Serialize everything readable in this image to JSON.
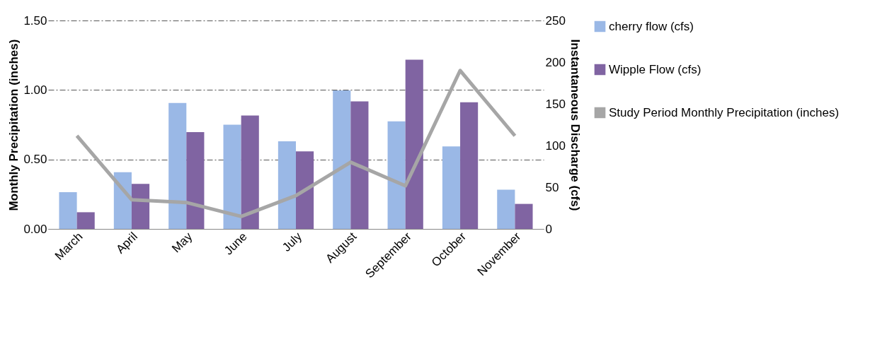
{
  "chart_data": {
    "type": "bar",
    "categories": [
      "March",
      "April",
      "May",
      "June",
      "July",
      "August",
      "September",
      "October",
      "November"
    ],
    "series": [
      {
        "name": "cherry flow (cfs)",
        "type": "bar",
        "axis": "y2",
        "color": "#9ab8e6",
        "values": [
          44,
          68,
          151,
          125,
          105,
          166,
          129,
          99,
          47
        ]
      },
      {
        "name": "Wipple Flow (cfs)",
        "type": "bar",
        "axis": "y2",
        "color": "#8064a2",
        "values": [
          20,
          54,
          116,
          136,
          93,
          153,
          203,
          152,
          30
        ]
      },
      {
        "name": "Study Period Monthly Precipitation (inches)",
        "type": "line",
        "axis": "y",
        "color": "#a6a6a6",
        "values": [
          0.67,
          0.21,
          0.19,
          0.09,
          0.24,
          0.48,
          0.31,
          1.14,
          0.67
        ]
      }
    ],
    "ylabel": "Monthly Precipitation (inches)",
    "y2label": "Instantaneous Discharge (cfs)",
    "ylim": [
      0,
      1.5
    ],
    "yticks": [
      {
        "value": 0,
        "label": "0.00"
      },
      {
        "value": 0.5,
        "label": "0.50"
      },
      {
        "value": 1,
        "label": "1.00"
      },
      {
        "value": 1.5,
        "label": "1.50"
      }
    ],
    "y2lim": [
      0,
      250
    ],
    "y2ticks": [
      0,
      50,
      100,
      150,
      200,
      250
    ],
    "grid": "y",
    "legend": "right",
    "line_style": "solid",
    "marker": "none"
  }
}
